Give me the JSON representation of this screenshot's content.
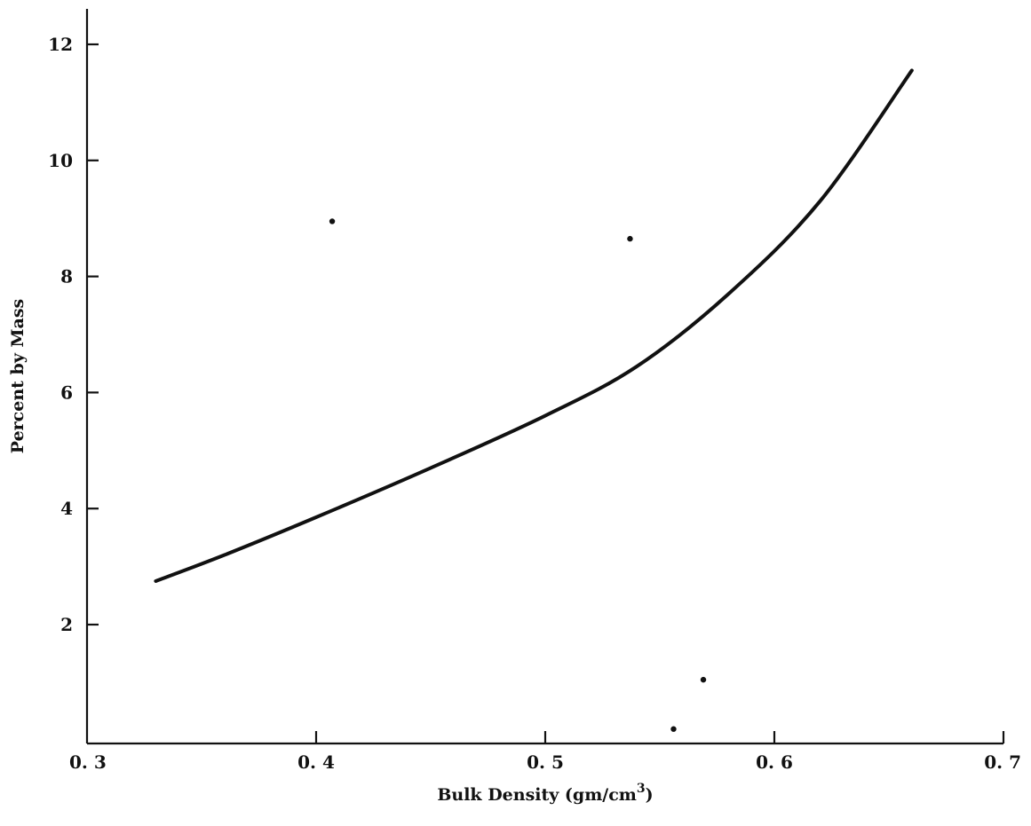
{
  "chart_data": {
    "type": "line",
    "title": "",
    "xlabel": "Bulk Density (gm/cm",
    "xlabel_superscript": "3",
    "xlabel_suffix": ")",
    "ylabel": "Percent by Mass",
    "xlim": [
      0.3,
      0.7
    ],
    "ylim": [
      0,
      12.5
    ],
    "x_ticks": [
      0.3,
      0.4,
      0.5,
      0.6,
      0.7
    ],
    "x_tick_labels": [
      "0. 3",
      "0. 4",
      "0. 5",
      "0. 6",
      "0. 7"
    ],
    "y_ticks": [
      2,
      4,
      6,
      8,
      10,
      12
    ],
    "y_tick_labels": [
      "2",
      "4",
      "6",
      "8",
      "10",
      "12"
    ],
    "grid": false,
    "legend": "none",
    "series": [
      {
        "kind": "line",
        "x": [
          0.33,
          0.36,
          0.4,
          0.45,
          0.5,
          0.54,
          0.58,
          0.62,
          0.66
        ],
        "y": [
          2.75,
          3.2,
          3.85,
          4.7,
          5.6,
          6.45,
          7.7,
          9.3,
          11.55
        ]
      },
      {
        "kind": "scatter",
        "x": [
          0.407,
          0.537,
          0.569,
          0.556
        ],
        "y": [
          8.95,
          8.65,
          1.05,
          0.2
        ]
      }
    ]
  }
}
